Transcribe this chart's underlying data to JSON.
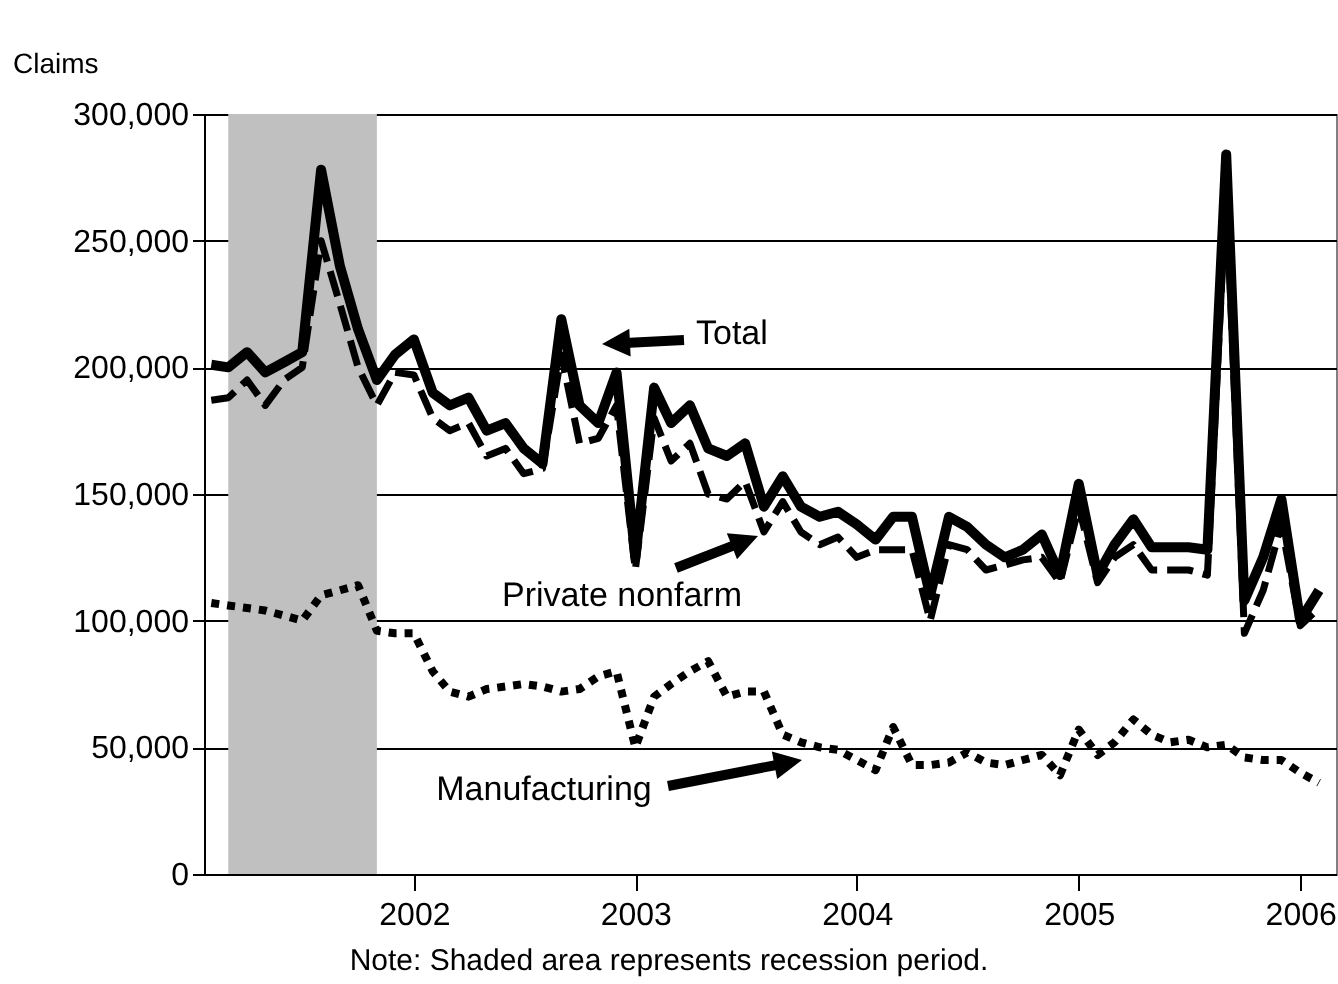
{
  "chart_data": {
    "type": "line",
    "ylabel": "Claims",
    "x": [
      "2001-02",
      "2001-03",
      "2001-04",
      "2001-05",
      "2001-06",
      "2001-07",
      "2001-08",
      "2001-09",
      "2001-10",
      "2001-11",
      "2001-12",
      "2002-01",
      "2002-02",
      "2002-03",
      "2002-04",
      "2002-05",
      "2002-06",
      "2002-07",
      "2002-08",
      "2002-09",
      "2002-10",
      "2002-11",
      "2002-12",
      "2003-01",
      "2003-02",
      "2003-03",
      "2003-04",
      "2003-05",
      "2003-06",
      "2003-07",
      "2003-08",
      "2003-09",
      "2003-10",
      "2003-11",
      "2003-12",
      "2004-01",
      "2004-02",
      "2004-03",
      "2004-04",
      "2004-05",
      "2004-06",
      "2004-07",
      "2004-08",
      "2004-09",
      "2004-10",
      "2004-11",
      "2004-12",
      "2005-01",
      "2005-02",
      "2005-03",
      "2005-04",
      "2005-05",
      "2005-06",
      "2005-07",
      "2005-08",
      "2005-09",
      "2005-10",
      "2005-11",
      "2005-12",
      "2006-01",
      "2006-02"
    ],
    "series": [
      {
        "name": "Total",
        "color": "#000000",
        "line_style": "solid",
        "values": [
          201000,
          200000,
          206000,
          198000,
          202000,
          206000,
          278000,
          240000,
          215000,
          195000,
          205000,
          211000,
          190000,
          185000,
          188000,
          175000,
          178000,
          168000,
          162000,
          219000,
          185000,
          178000,
          198000,
          125000,
          192000,
          178000,
          185000,
          168000,
          165000,
          170000,
          145000,
          157000,
          145000,
          141000,
          143000,
          138000,
          132000,
          141000,
          141000,
          110000,
          141000,
          137000,
          130000,
          125000,
          128000,
          134000,
          118000,
          154000,
          118000,
          130000,
          140000,
          129000,
          129000,
          129000,
          128000,
          284000,
          108000,
          125000,
          148000,
          100000,
          112000
        ]
      },
      {
        "name": "Private nonfarm",
        "color": "#000000",
        "line_style": "dashed",
        "values": [
          187000,
          188000,
          195000,
          185000,
          195000,
          200000,
          250000,
          225000,
          200000,
          185000,
          198000,
          197000,
          180000,
          175000,
          178000,
          165000,
          168000,
          158000,
          160000,
          205000,
          170000,
          172000,
          185000,
          120000,
          180000,
          163000,
          170000,
          150000,
          148000,
          155000,
          135000,
          147000,
          135000,
          130000,
          133000,
          125000,
          128000,
          128000,
          128000,
          100000,
          130000,
          128000,
          120000,
          122000,
          124000,
          125000,
          115000,
          145000,
          115000,
          125000,
          130000,
          120000,
          120000,
          120000,
          118000,
          270000,
          95000,
          112000,
          138000,
          98000,
          105000
        ]
      },
      {
        "name": "Manufacturing",
        "color": "#000000",
        "line_style": "dotted",
        "values": [
          107000,
          106000,
          105000,
          104000,
          102000,
          100000,
          110000,
          112000,
          114000,
          96000,
          95000,
          95000,
          80000,
          72000,
          70000,
          73000,
          74000,
          75000,
          74000,
          72000,
          73000,
          78000,
          80000,
          50000,
          70000,
          75000,
          80000,
          84000,
          70000,
          72000,
          72000,
          55000,
          52000,
          50000,
          49000,
          45000,
          41000,
          58000,
          43000,
          43000,
          44000,
          48000,
          44000,
          43000,
          45000,
          47000,
          39000,
          57000,
          47000,
          52000,
          61000,
          55000,
          52000,
          53000,
          50000,
          51000,
          46000,
          45000,
          45000,
          40000,
          36000
        ]
      }
    ],
    "xlim": [
      "2001-01-20",
      "2006-03"
    ],
    "xticks": [
      {
        "value": "2002-01",
        "label": "2002"
      },
      {
        "value": "2003-01",
        "label": "2003"
      },
      {
        "value": "2004-01",
        "label": "2004"
      },
      {
        "value": "2005-01",
        "label": "2005"
      },
      {
        "value": "2006-01",
        "label": "2006"
      }
    ],
    "ylim": [
      0,
      300000
    ],
    "yticks": [
      0,
      {
        "value": 50000,
        "label": "50,000"
      },
      {
        "value": 100000,
        "label": "100,000"
      },
      {
        "value": 150000,
        "label": "150,000"
      },
      {
        "value": 200000,
        "label": "200,000"
      },
      {
        "value": 250000,
        "label": "250,000"
      },
      {
        "value": 300000,
        "label": "300,000"
      }
    ],
    "grid": "y",
    "bands": [
      {
        "axis": "x",
        "from": "2001-03",
        "to": "2001-11",
        "color": "#c0c0c0"
      }
    ],
    "annotations": [
      "Note: Shaded area represents recession period."
    ]
  }
}
